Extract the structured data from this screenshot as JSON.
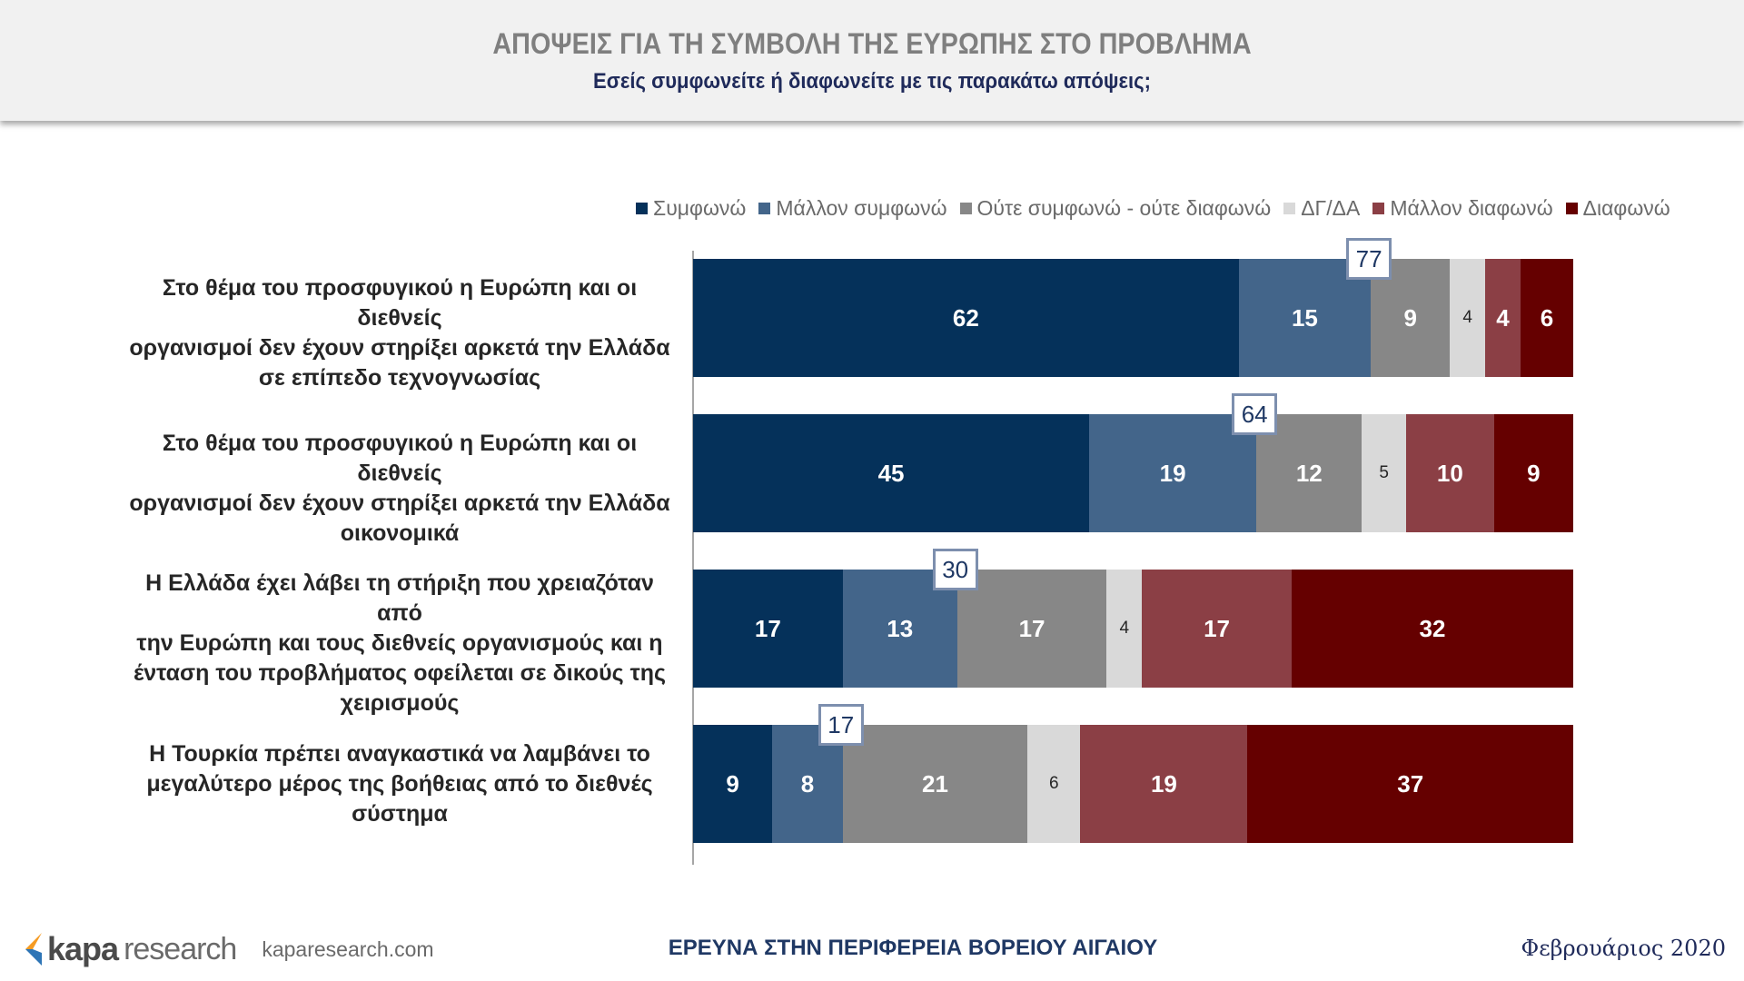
{
  "header": {
    "title": "ΑΠΟΨΕΙΣ ΓΙΑ ΤΗ ΣΥΜΒΟΛΗ ΤΗΣ ΕΥΡΩΠΗΣ ΣΤΟ ΠΡΟΒΛΗΜΑ",
    "subtitle": "Εσείς συμφωνείτε ή διαφωνείτε με τις παρακάτω απόψεις;"
  },
  "chart_data": {
    "type": "bar",
    "orientation": "horizontal-stacked-100",
    "series": [
      {
        "name": "Συμφωνώ",
        "color": "#05315a",
        "values": [
          62,
          45,
          17,
          9
        ]
      },
      {
        "name": "Μάλλον συμφωνώ",
        "color": "#43658a",
        "values": [
          15,
          19,
          13,
          8
        ]
      },
      {
        "name": "Ούτε συμφωνώ - ούτε διαφωνώ",
        "color": "#878787",
        "values": [
          9,
          12,
          17,
          21
        ]
      },
      {
        "name": "ΔΓ/ΔΑ",
        "color": "#d9d9d9",
        "values": [
          4,
          5,
          4,
          6
        ]
      },
      {
        "name": "Μάλλον διαφωνώ",
        "color": "#8b3f45",
        "values": [
          4,
          10,
          17,
          19
        ]
      },
      {
        "name": "Διαφωνώ",
        "color": "#650000",
        "values": [
          6,
          9,
          32,
          37
        ]
      }
    ],
    "categories": [
      [
        "Στο θέμα του προσφυγικού η Ευρώπη και οι διεθνείς",
        "οργανισμοί δεν έχουν στηρίξει αρκετά την Ελλάδα",
        "σε επίπεδο τεχνογνωσίας"
      ],
      [
        "Στο θέμα του προσφυγικού η Ευρώπη και οι διεθνείς",
        "οργανισμοί δεν έχουν στηρίξει αρκετά την Ελλάδα",
        "οικονομικά"
      ],
      [
        "Η Ελλάδα έχει λάβει τη στήριξη που χρειαζόταν από",
        "την Ευρώπη και τους διεθνείς οργανισμούς και η",
        "ένταση του προβλήματος οφείλεται σε δικούς της",
        "χειρισμούς"
      ],
      [
        "Η Τουρκία πρέπει αναγκαστικά να λαμβάνει το",
        "μεγαλύτερο μέρος της βοήθειας από το διεθνές",
        "σύστημα"
      ]
    ],
    "totals_agree": [
      77,
      64,
      30,
      17
    ],
    "legend_position": "top"
  },
  "footer": {
    "logo_kapa": "kapa",
    "logo_research": "research",
    "url": "kaparesearch.com",
    "center": "ΕΡΕΥΝΑ ΣΤΗΝ ΠΕΡΙΦΕΡΕΙΑ ΒΟΡΕΙΟΥ ΑΙΓΑΙΟΥ",
    "date": "Φεβρουάριος 2020"
  }
}
